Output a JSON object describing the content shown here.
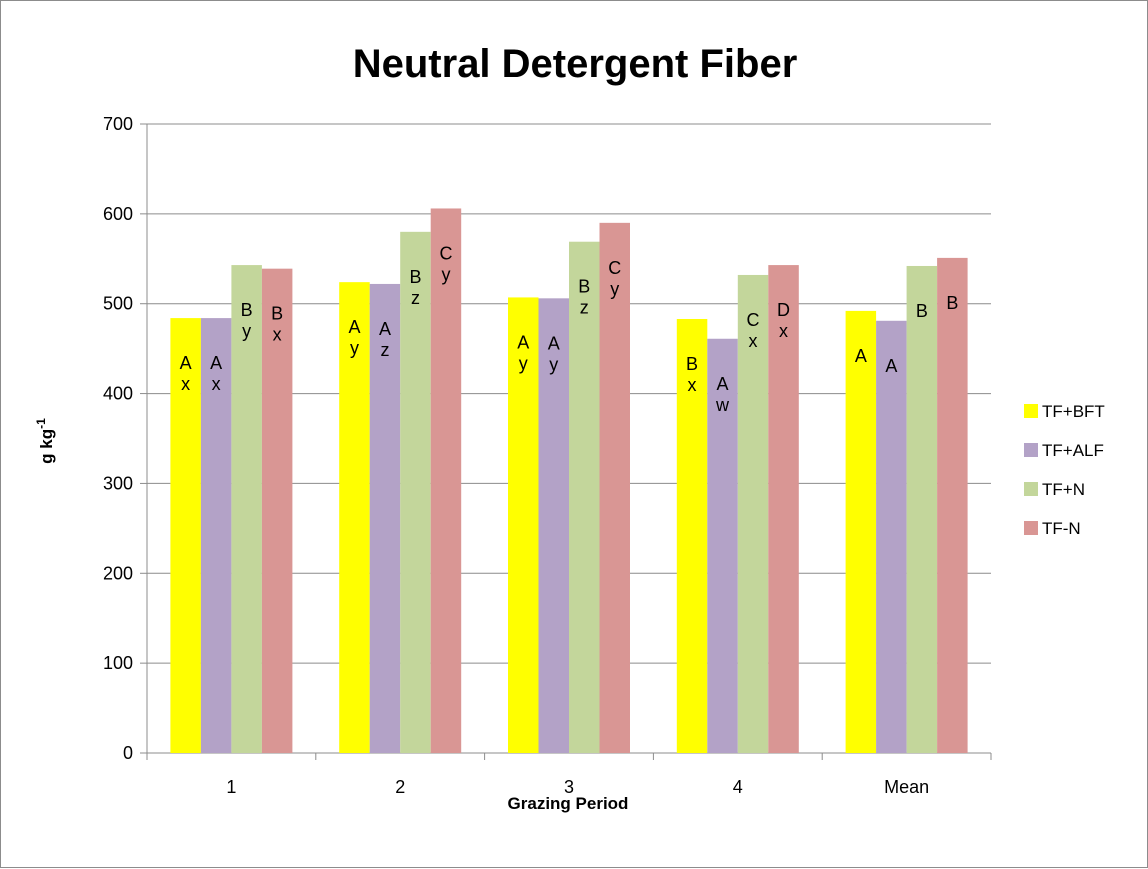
{
  "chart_data": {
    "type": "bar",
    "title": "Neutral Detergent Fiber",
    "xlabel": "Grazing Period",
    "ylabel_main": "g kg",
    "ylabel_sup": "-1",
    "categories": [
      "1",
      "2",
      "3",
      "4",
      "Mean"
    ],
    "ylim": [
      0,
      700
    ],
    "yticks": [
      0,
      100,
      200,
      300,
      400,
      500,
      600,
      700
    ],
    "grid": true,
    "legend_position": "right",
    "series": [
      {
        "name": "TF+BFT",
        "color": "#FFFF00",
        "values": [
          484,
          524,
          507,
          483,
          492
        ],
        "labels": [
          [
            "A",
            "x"
          ],
          [
            "A",
            "y"
          ],
          [
            "A",
            "y"
          ],
          [
            "B",
            "x"
          ],
          [
            "A"
          ]
        ]
      },
      {
        "name": "TF+ALF",
        "color": "#B3A2C7",
        "values": [
          484,
          522,
          506,
          461,
          481
        ],
        "labels": [
          [
            "A",
            "x"
          ],
          [
            "A",
            "z"
          ],
          [
            "A",
            "y"
          ],
          [
            "A",
            "w"
          ],
          [
            "A"
          ]
        ]
      },
      {
        "name": "TF+N",
        "color": "#C3D69B",
        "values": [
          543,
          580,
          569,
          532,
          542
        ],
        "labels": [
          [
            "B",
            "y"
          ],
          [
            "B",
            "z"
          ],
          [
            "B",
            "z"
          ],
          [
            "C",
            "x"
          ],
          [
            "B"
          ]
        ]
      },
      {
        "name": "TF-N",
        "color": "#D99694",
        "values": [
          539,
          606,
          590,
          543,
          551
        ],
        "labels": [
          [
            "B",
            "x"
          ],
          [
            "C",
            "y"
          ],
          [
            "C",
            "y"
          ],
          [
            "D",
            "x"
          ],
          [
            "B"
          ]
        ]
      }
    ]
  }
}
